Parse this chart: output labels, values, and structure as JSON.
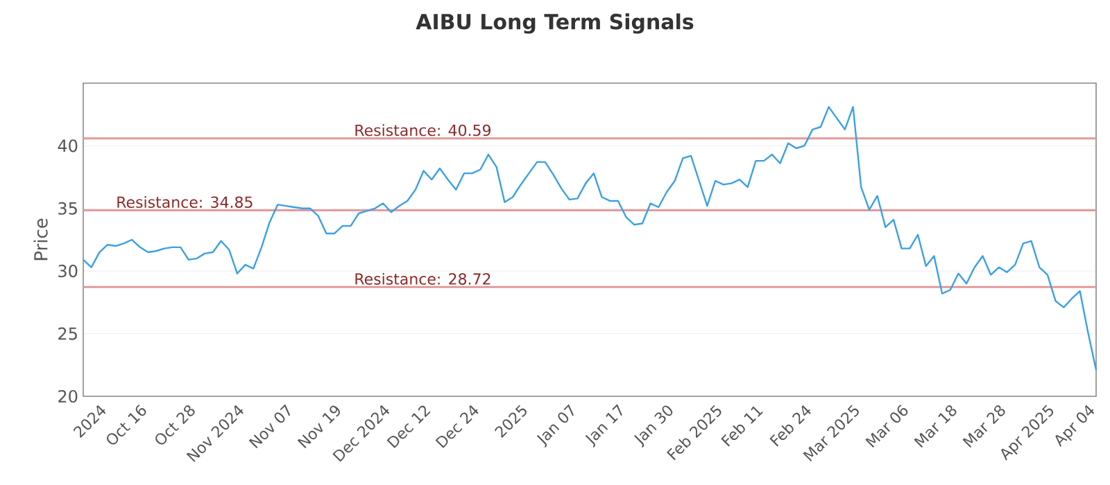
{
  "chart_data": {
    "type": "line",
    "title": "AIBU Long Term Signals",
    "ylabel": "Price",
    "categories": [
      null,
      null,
      "2024",
      null,
      null,
      null,
      null,
      "Oct 16",
      null,
      null,
      null,
      null,
      null,
      "Oct 28",
      null,
      null,
      null,
      null,
      null,
      "Nov 2024",
      null,
      null,
      null,
      null,
      null,
      "Nov 07",
      null,
      null,
      null,
      null,
      null,
      "Nov 19",
      null,
      null,
      null,
      null,
      null,
      "Dec 2024",
      null,
      null,
      null,
      null,
      "Dec 12",
      null,
      null,
      null,
      null,
      null,
      "Dec 24",
      null,
      null,
      null,
      null,
      null,
      "2025",
      null,
      null,
      null,
      null,
      null,
      "Jan 07",
      null,
      null,
      null,
      null,
      null,
      "Jan 17",
      null,
      null,
      null,
      null,
      null,
      "Jan 30",
      null,
      null,
      null,
      null,
      null,
      "Feb 2025",
      null,
      null,
      null,
      null,
      "Feb 11",
      null,
      null,
      null,
      null,
      null,
      "Feb 24",
      null,
      null,
      null,
      null,
      null,
      "Mar 2025",
      null,
      null,
      null,
      null,
      null,
      "Mar 06",
      null,
      null,
      null,
      null,
      null,
      "Mar 18",
      null,
      null,
      null,
      null,
      null,
      "Mar 28",
      null,
      null,
      null,
      null,
      null,
      "Apr 2025",
      null,
      null,
      null,
      null,
      "Apr 04",
      null
    ],
    "series": [
      {
        "color": "#3ba0e6",
        "values": [
          30.9,
          30.3,
          31.5,
          32.1,
          32.0,
          32.2,
          32.5,
          31.9,
          31.5,
          31.6,
          31.8,
          31.9,
          31.9,
          30.9,
          31.0,
          31.4,
          31.5,
          32.4,
          31.7,
          29.8,
          30.5,
          30.2,
          31.9,
          33.9,
          35.3,
          35.2,
          35.1,
          35.0,
          35.0,
          34.4,
          33.0,
          33.0,
          33.6,
          33.6,
          34.6,
          34.8,
          35.0,
          35.4,
          34.7,
          35.2,
          35.6,
          36.5,
          38.0,
          37.3,
          38.2,
          37.3,
          36.5,
          37.8,
          37.8,
          38.1,
          39.3,
          38.3,
          35.5,
          35.9,
          36.9,
          37.8,
          38.7,
          38.7,
          37.7,
          36.6,
          35.7,
          35.8,
          37.0,
          37.8,
          35.9,
          35.6,
          35.6,
          34.3,
          33.7,
          33.8,
          35.4,
          35.1,
          36.3,
          37.2,
          39.0,
          39.2,
          37.2,
          35.2,
          37.2,
          36.9,
          37.0,
          37.3,
          36.7,
          38.8,
          38.8,
          39.3,
          38.6,
          40.2,
          39.8,
          40.0,
          41.3,
          41.5,
          43.1,
          42.2,
          41.3,
          43.1,
          36.7,
          34.9,
          36.0,
          33.5,
          34.1,
          31.8,
          31.8,
          32.9,
          30.4,
          31.2,
          28.2,
          28.5,
          29.8,
          29.0,
          30.3,
          31.2,
          29.7,
          30.3,
          29.9,
          30.5,
          32.2,
          32.4,
          30.3,
          29.7,
          27.6,
          27.1,
          27.8,
          28.4,
          25.1,
          22.1
        ]
      }
    ],
    "ylim": [
      20,
      45
    ],
    "yticks": [
      20,
      25,
      30,
      35,
      40
    ],
    "grid": "y",
    "marker": "none",
    "line_style": "solid",
    "ref_lines": [
      {
        "axis": "y",
        "value": 40.59,
        "label": "Resistance: 40.59",
        "color": "#e39a9a"
      },
      {
        "axis": "y",
        "value": 34.85,
        "label": "Resistance: 34.85",
        "color": "#e39a9a"
      },
      {
        "axis": "y",
        "value": 28.72,
        "label": "Resistance: 28.72",
        "color": "#e39a9a"
      }
    ]
  }
}
